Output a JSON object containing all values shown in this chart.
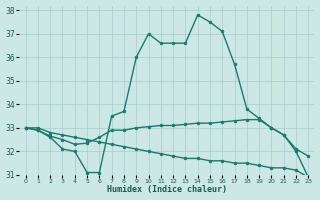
{
  "background_color": "#cce8e4",
  "grid_color": "#aacccc",
  "line_color": "#1a7a6e",
  "x_label": "Humidex (Indice chaleur)",
  "xlim": [
    -0.5,
    23.5
  ],
  "ylim": [
    31,
    38.2
  ],
  "yticks": [
    31,
    32,
    33,
    34,
    35,
    36,
    37,
    38
  ],
  "xticks": [
    0,
    1,
    2,
    3,
    4,
    5,
    6,
    7,
    8,
    9,
    10,
    11,
    12,
    13,
    14,
    15,
    16,
    17,
    18,
    19,
    20,
    21,
    22,
    23
  ],
  "series": [
    {
      "x": [
        0,
        1,
        2,
        3,
        4,
        5,
        6,
        7,
        8,
        9,
        10,
        11,
        12,
        13,
        14,
        15,
        16,
        17,
        18,
        19,
        20,
        21,
        22,
        23
      ],
      "y": [
        33.0,
        32.9,
        32.6,
        32.1,
        32.0,
        31.1,
        31.1,
        33.5,
        33.7,
        36.0,
        37.0,
        36.6,
        36.6,
        36.6,
        37.8,
        37.5,
        37.1,
        35.7,
        33.8,
        33.4,
        33.0,
        32.7,
        32.0,
        30.9
      ],
      "marker": "o",
      "markersize": 2.0,
      "linewidth": 1.0
    },
    {
      "x": [
        0,
        1,
        2,
        3,
        4,
        5,
        6,
        7,
        8,
        9,
        10,
        11,
        12,
        13,
        14,
        15,
        16,
        17,
        18,
        19,
        20,
        21,
        22,
        23
      ],
      "y": [
        33.0,
        32.9,
        32.65,
        32.5,
        32.3,
        32.35,
        32.6,
        32.9,
        32.9,
        33.0,
        33.05,
        33.1,
        33.1,
        33.15,
        33.2,
        33.2,
        33.25,
        33.3,
        33.35,
        33.35,
        33.0,
        32.7,
        32.1,
        31.8
      ],
      "marker": "o",
      "markersize": 2.0,
      "linewidth": 1.0
    },
    {
      "x": [
        0,
        1,
        2,
        3,
        4,
        5,
        6,
        7,
        8,
        9,
        10,
        11,
        12,
        13,
        14,
        15,
        16,
        17,
        18,
        19,
        20,
        21,
        22,
        23
      ],
      "y": [
        33.0,
        33.0,
        32.8,
        32.7,
        32.6,
        32.5,
        32.4,
        32.3,
        32.2,
        32.1,
        32.0,
        31.9,
        31.8,
        31.7,
        31.7,
        31.6,
        31.6,
        31.5,
        31.5,
        31.4,
        31.3,
        31.3,
        31.2,
        30.9
      ],
      "marker": "o",
      "markersize": 2.0,
      "linewidth": 1.0
    }
  ]
}
